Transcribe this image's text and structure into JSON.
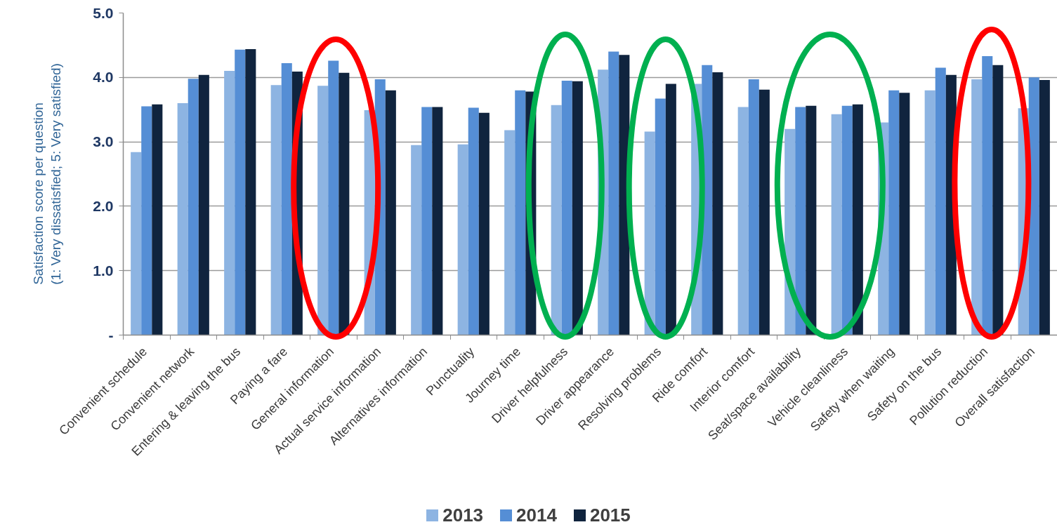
{
  "chart_data": {
    "type": "bar",
    "categories": [
      "Convenient schedule",
      "Convenient network",
      "Entering & leaving the bus",
      "Paying a fare",
      "General information",
      "Actual service information",
      "Alternatives information",
      "Punctuality",
      "Journey time",
      "Driver helpfulness",
      "Driver appearance",
      "Resolving problems",
      "Ride comfort",
      "Interior comfort",
      "Seat/space availability",
      "Vehicle cleanliness",
      "Safety when waiting",
      "Safety on the bus",
      "Pollution reduction",
      "Overall satisfaction"
    ],
    "series": [
      {
        "name": "2013",
        "color": "#8db4e2",
        "values": [
          2.84,
          3.6,
          4.1,
          3.88,
          3.87,
          3.49,
          2.95,
          2.96,
          3.18,
          3.57,
          4.12,
          3.16,
          3.9,
          3.54,
          3.2,
          3.43,
          3.3,
          3.8,
          3.97,
          3.52
        ]
      },
      {
        "name": "2014",
        "color": "#558ed5",
        "values": [
          3.55,
          3.98,
          4.43,
          4.22,
          4.26,
          3.97,
          3.54,
          3.53,
          3.8,
          3.95,
          4.4,
          3.67,
          4.19,
          3.97,
          3.54,
          3.56,
          3.8,
          4.15,
          4.33,
          4.0
        ]
      },
      {
        "name": "2015",
        "color": "#10243e",
        "values": [
          3.58,
          4.04,
          4.44,
          4.09,
          4.07,
          3.8,
          3.54,
          3.45,
          3.78,
          3.94,
          4.35,
          3.9,
          4.08,
          3.81,
          3.56,
          3.58,
          3.76,
          4.04,
          4.19,
          3.96
        ]
      }
    ],
    "ylabel": "Satisfaction score per question\n(1: Very dissatisfied; 5: Very satisfied)",
    "ylim": [
      0,
      5
    ],
    "yticks": [
      {
        "value": 0,
        "label": "-"
      },
      {
        "value": 1,
        "label": "1.0"
      },
      {
        "value": 2,
        "label": "2.0"
      },
      {
        "value": 3,
        "label": "3.0"
      },
      {
        "value": 4,
        "label": "4.0"
      },
      {
        "value": 5,
        "label": "5.0"
      }
    ],
    "grid": "y",
    "legend": "bottom"
  }
}
